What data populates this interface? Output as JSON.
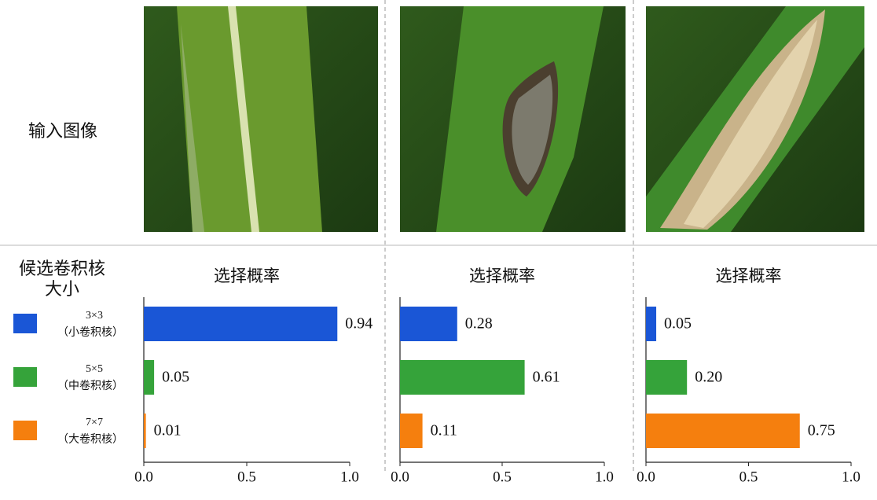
{
  "input_label": "输入图像",
  "legend": {
    "title": "候选卷积核大小",
    "items": [
      {
        "size": "3×3",
        "note": "（小卷积核）",
        "color": "#1a56d6"
      },
      {
        "size": "5×5",
        "note": "（中卷积核）",
        "color": "#35a33a"
      },
      {
        "size": "7×7",
        "note": "（大卷积核）",
        "color": "#f57f0e"
      }
    ]
  },
  "chart_data": [
    {
      "type": "barh",
      "title": "选择概率",
      "values": [
        0.94,
        0.05,
        0.01
      ],
      "value_labels": [
        "0.94",
        "0.05",
        "0.01"
      ],
      "colors": [
        "#1a56d6",
        "#35a33a",
        "#f57f0e"
      ],
      "xlim": [
        0,
        1
      ],
      "xticks": [
        {
          "value": 0,
          "label": "0.0"
        },
        {
          "value": 0.5,
          "label": "0.5"
        },
        {
          "value": 1,
          "label": "1.0"
        }
      ]
    },
    {
      "type": "barh",
      "title": "选择概率",
      "values": [
        0.28,
        0.61,
        0.11
      ],
      "value_labels": [
        "0.28",
        "0.61",
        "0.11"
      ],
      "colors": [
        "#1a56d6",
        "#35a33a",
        "#f57f0e"
      ],
      "xlim": [
        0,
        1
      ],
      "xticks": [
        {
          "value": 0,
          "label": "0.0"
        },
        {
          "value": 0.5,
          "label": "0.5"
        },
        {
          "value": 1,
          "label": "1.0"
        }
      ]
    },
    {
      "type": "barh",
      "title": "选择概率",
      "values": [
        0.05,
        0.2,
        0.75
      ],
      "value_labels": [
        "0.05",
        "0.20",
        "0.75"
      ],
      "colors": [
        "#1a56d6",
        "#35a33a",
        "#f57f0e"
      ],
      "xlim": [
        0,
        1
      ],
      "xticks": [
        {
          "value": 0,
          "label": "0.0"
        },
        {
          "value": 0.5,
          "label": "0.5"
        },
        {
          "value": 1,
          "label": "1.0"
        }
      ]
    }
  ]
}
